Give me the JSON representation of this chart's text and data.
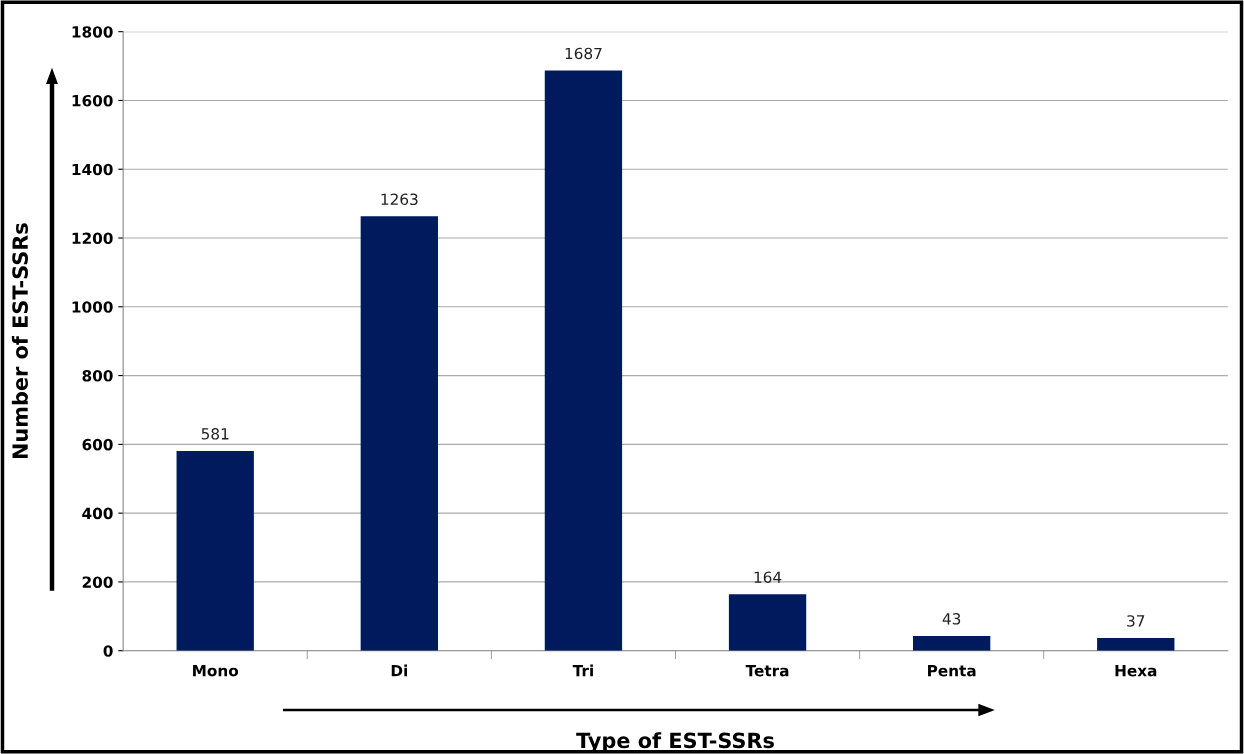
{
  "chart_data": {
    "type": "bar",
    "categories": [
      "Mono",
      "Di",
      "Tri",
      "Tetra",
      "Penta",
      "Hexa"
    ],
    "values": [
      581,
      1263,
      1687,
      164,
      43,
      37
    ],
    "color": "#001a5e",
    "ylim": [
      0,
      1800
    ],
    "yticks": [
      0,
      200,
      400,
      600,
      800,
      1000,
      1200,
      1400,
      1600,
      1800
    ],
    "grid": "y",
    "data_labels": true,
    "xlabel": "Type of EST-SSRs",
    "ylabel": "Number of EST-SSRs"
  }
}
